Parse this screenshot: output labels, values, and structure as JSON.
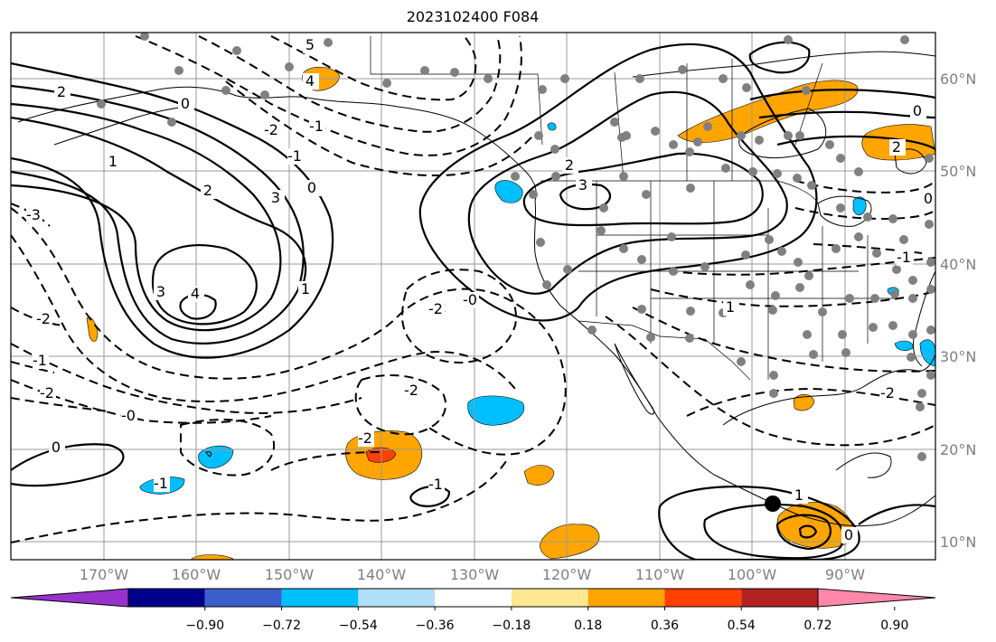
{
  "title": "2023102400 F084",
  "lon_labels": [
    "170°W",
    "160°W",
    "150°W",
    "140°W",
    "130°W",
    "120°W",
    "110°W",
    "100°W",
    "90°W"
  ],
  "lat_labels": [
    "60°N",
    "50°N",
    "40°N",
    "30°N",
    "20°N",
    "10°N"
  ],
  "colorbar": {
    "colors": [
      "#9932cc",
      "#00008b",
      "#3a5fcd",
      "#00bfff",
      "#b0e0fa",
      "#ffffff",
      "#ffe88f",
      "#ffa500",
      "#ff4000",
      "#b22222",
      "#ff88aa"
    ],
    "tick_labels": [
      "−0.90",
      "−0.72",
      "−0.54",
      "−0.36",
      "−0.18",
      "0.18",
      "0.36",
      "0.54",
      "0.72",
      "0.90"
    ]
  },
  "contour_labels": [
    "2",
    "0",
    "4",
    "3",
    "2",
    "1",
    "0",
    "-2",
    "-1",
    "-2",
    "-3",
    "-2",
    "-1",
    "-0",
    "0",
    "-1",
    "-2",
    "-2",
    "-2",
    "-0",
    "-2",
    "-1",
    "3",
    "2",
    "3",
    "2",
    "0",
    "2",
    "1",
    "-2",
    "-1",
    "0",
    "5",
    "4",
    "1",
    "1",
    "0",
    "-1"
  ],
  "colors": {
    "frame": "#000000",
    "grid": "#999999",
    "stations": "#808080",
    "contour": "#000000"
  }
}
